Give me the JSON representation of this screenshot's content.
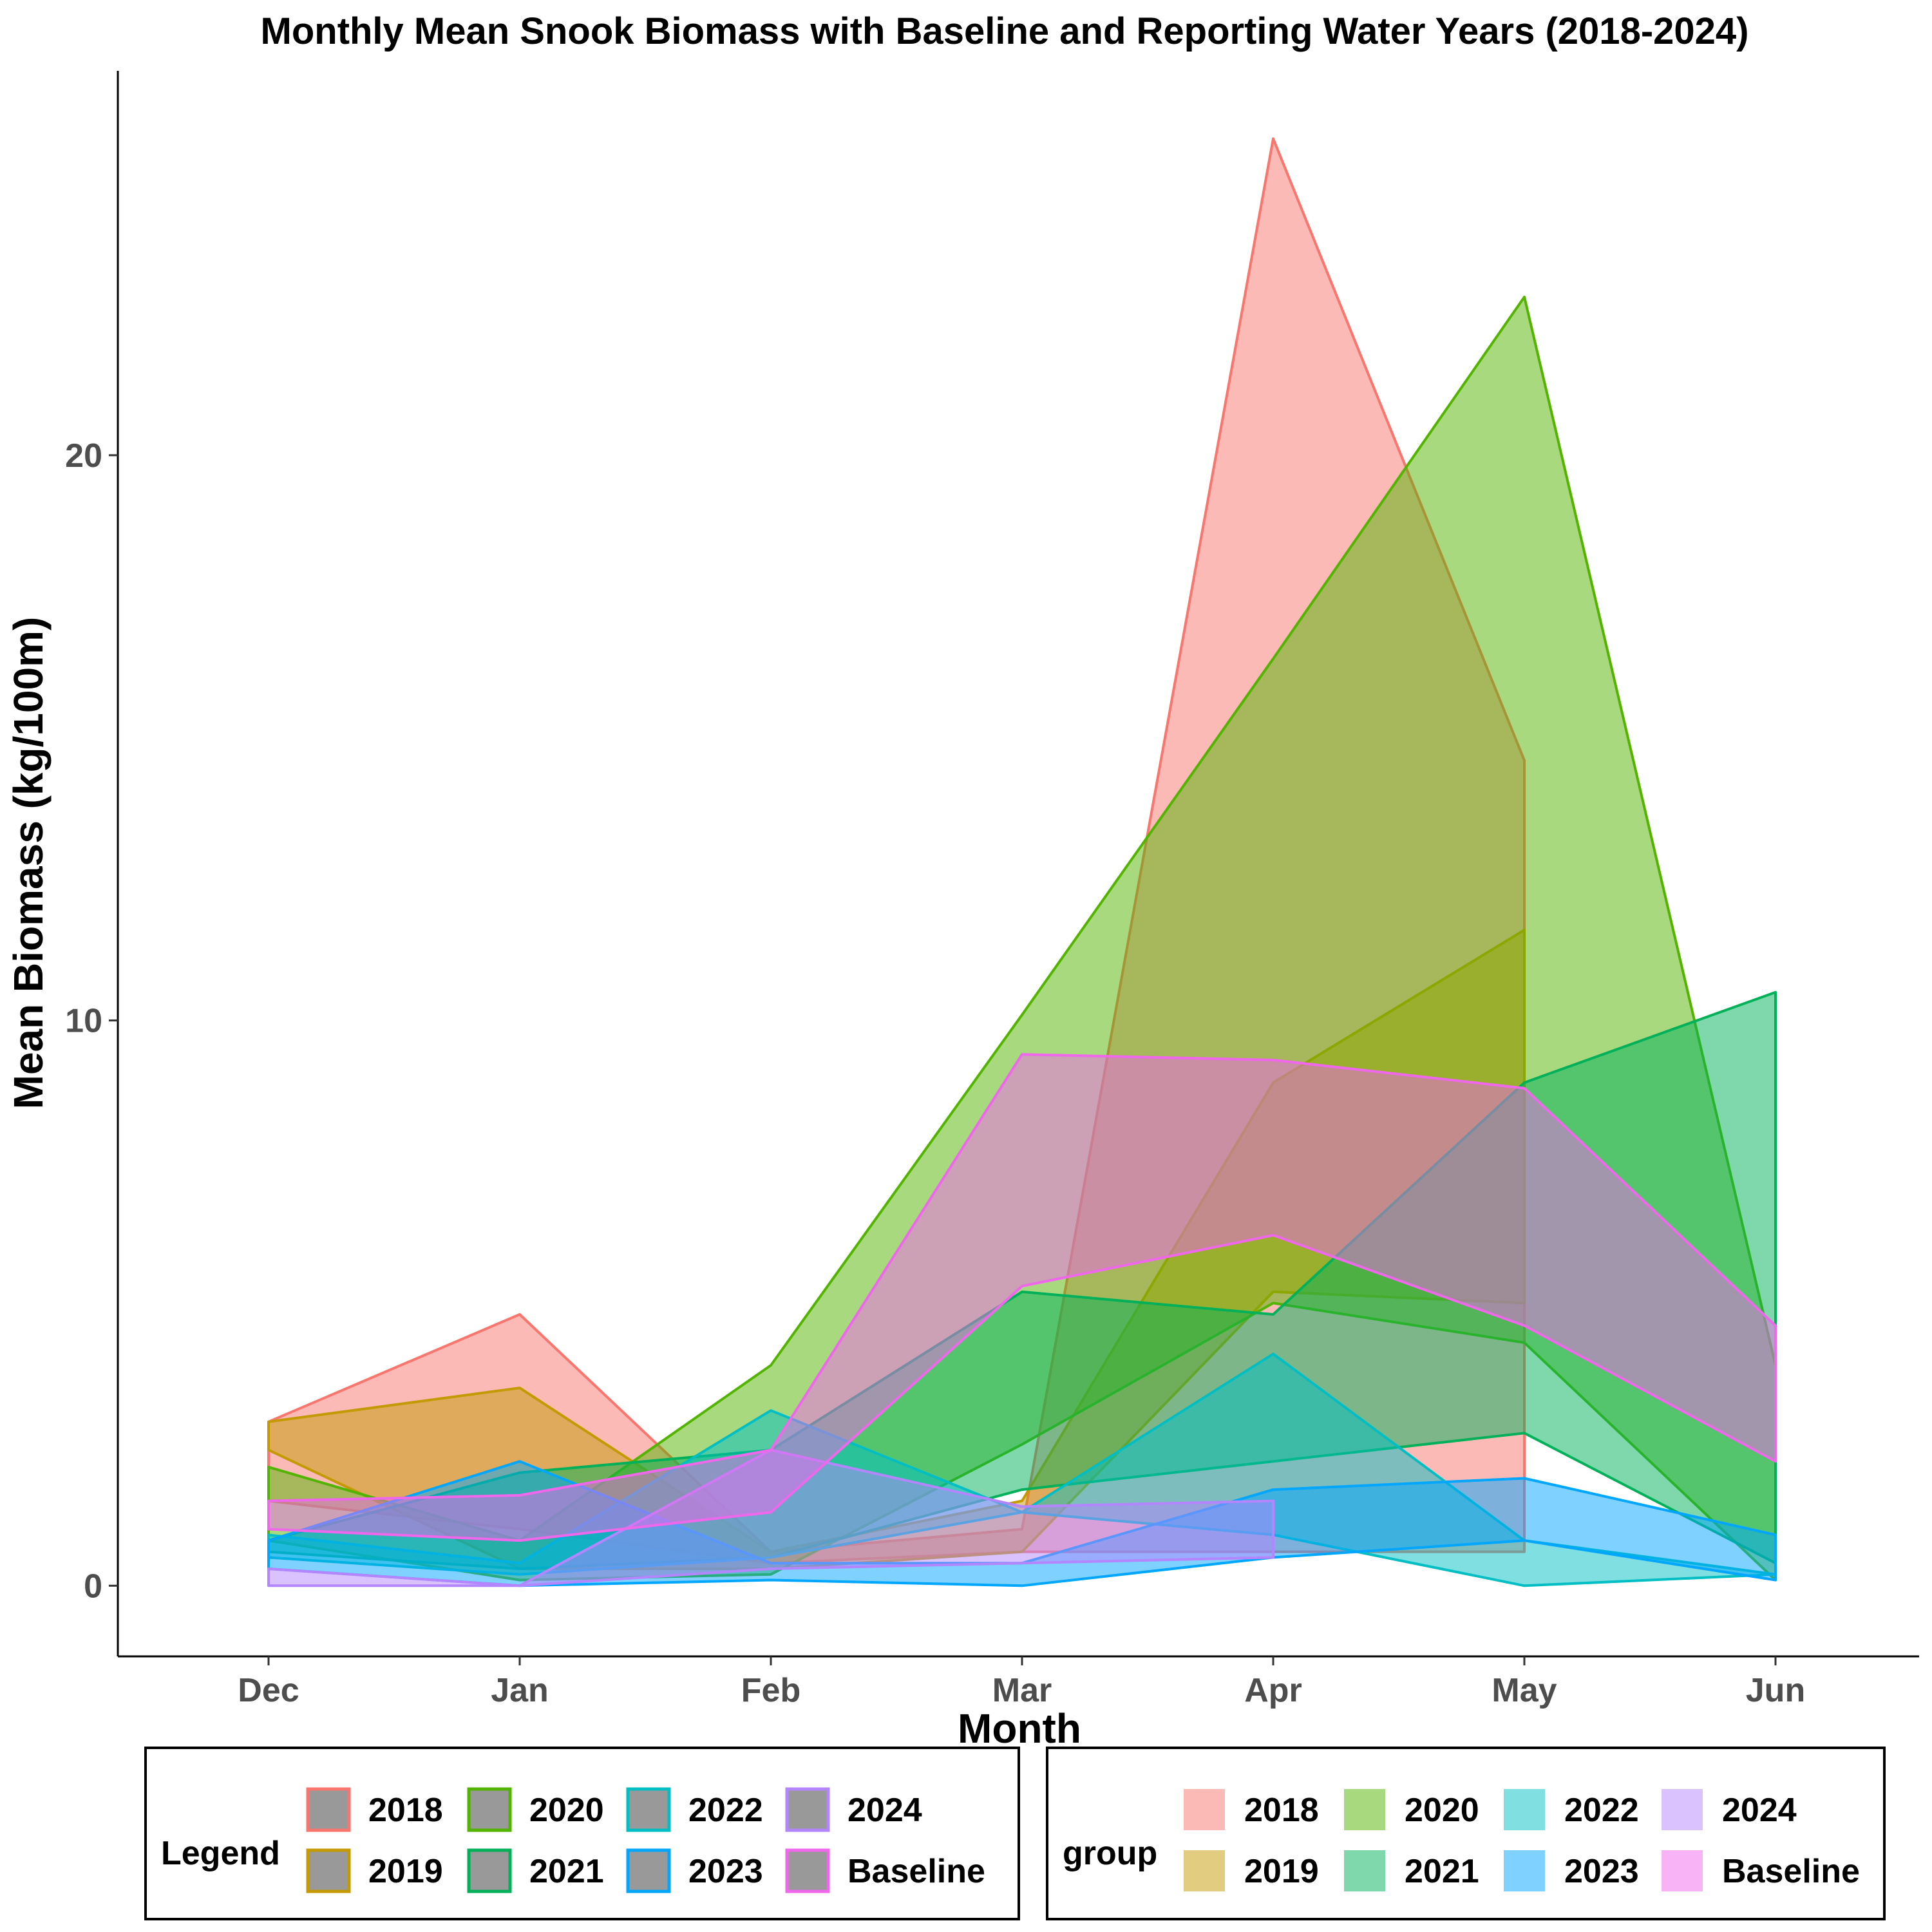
{
  "chart_data": {
    "type": "area",
    "title": "Monthly Mean Snook Biomass with Baseline and Reporting Water Years (2018-2024)",
    "xlabel": "Month",
    "ylabel": "Mean Biomass (kg/100m)",
    "categories": [
      "Dec",
      "Jan",
      "Feb",
      "Mar",
      "Apr",
      "May",
      "Jun"
    ],
    "ylim": [
      -1.25,
      26.8
    ],
    "yticks": [
      0,
      10,
      20
    ],
    "grid": false,
    "legend_position": "bottom",
    "legends": [
      {
        "title": "Legend",
        "kind": "line-color"
      },
      {
        "title": "group",
        "kind": "fill-color"
      }
    ],
    "series": [
      {
        "name": "2018",
        "color": "#F8766D",
        "upper": [
          2.9,
          4.8,
          0.6,
          1.0,
          25.6,
          14.6,
          null
        ],
        "lower": [
          1.5,
          1.0,
          0.4,
          0.6,
          0.6,
          0.6,
          null
        ]
      },
      {
        "name": "2019",
        "color": "#C49A00",
        "upper": [
          2.9,
          3.5,
          0.6,
          1.5,
          8.9,
          11.6,
          null
        ],
        "lower": [
          2.4,
          0.3,
          0.3,
          0.6,
          5.2,
          5.0,
          null
        ]
      },
      {
        "name": "2020",
        "color": "#53B400",
        "upper": [
          2.1,
          0.8,
          3.9,
          10.1,
          16.4,
          22.8,
          3.9
        ],
        "lower": [
          0.8,
          0.1,
          0.2,
          2.5,
          5.0,
          4.3,
          0.1
        ]
      },
      {
        "name": "2021",
        "color": "#00B159",
        "upper": [
          0.8,
          2.0,
          2.4,
          5.2,
          4.8,
          8.9,
          10.5
        ],
        "lower": [
          0.6,
          0.3,
          0.5,
          1.7,
          2.2,
          2.7,
          0.4
        ]
      },
      {
        "name": "2022",
        "color": "#00BFC4",
        "upper": [
          0.9,
          0.4,
          3.1,
          1.3,
          4.1,
          0.8,
          0.2
        ],
        "lower": [
          0.5,
          0.2,
          0.5,
          1.3,
          0.9,
          0.0,
          0.2
        ]
      },
      {
        "name": "2023",
        "color": "#00A6FF",
        "upper": [
          0.8,
          2.2,
          0.4,
          0.4,
          1.7,
          1.9,
          0.9
        ],
        "lower": [
          0.3,
          0.0,
          0.1,
          0.0,
          0.5,
          0.8,
          0.1
        ]
      },
      {
        "name": "2024",
        "color": "#B385FF",
        "upper": [
          0.3,
          0.0,
          2.4,
          1.4,
          1.5,
          null,
          null
        ],
        "lower": [
          0.0,
          0.0,
          0.3,
          0.4,
          0.5,
          null,
          null
        ]
      },
      {
        "name": "Baseline",
        "color": "#EF67EB",
        "upper": [
          1.5,
          1.6,
          2.4,
          9.4,
          9.3,
          8.8,
          4.6
        ],
        "lower": [
          1.0,
          0.8,
          1.3,
          5.3,
          6.2,
          4.6,
          2.2
        ]
      }
    ]
  }
}
